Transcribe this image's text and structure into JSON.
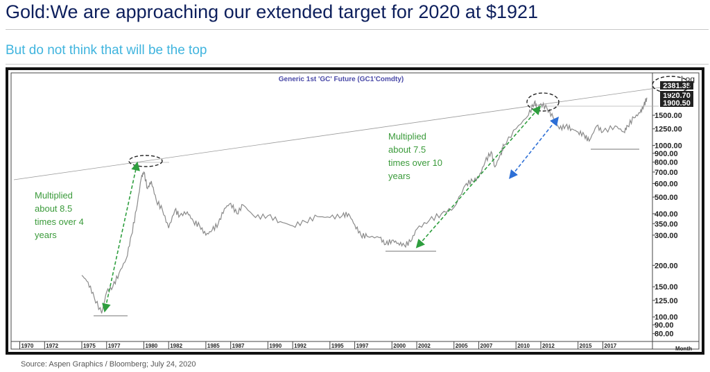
{
  "header": {
    "title": "Gold:We are approaching our extended target for 2020 at $1921",
    "subtitle": "But do not think that will be the top"
  },
  "footer": {
    "source": "Source: Aspen Graphics / Bloomberg; July 24, 2020"
  },
  "colors": {
    "title": "#0d1f5c",
    "subtitle": "#3fb4de",
    "series": "#8a8a8a",
    "green_arrow": "#2e9e3e",
    "blue_arrow": "#2d6fd6",
    "annotation_text": "#3a9a3a"
  },
  "chart_data": {
    "type": "line",
    "title": "Generic 1st 'GC' Future (GC1'Comdty)",
    "scale": "Log",
    "x_axis_label": "Month",
    "x_ticks": [
      "1970",
      "1972",
      "1975",
      "1977",
      "1980",
      "1982",
      "1985",
      "1987",
      "1990",
      "1992",
      "1995",
      "1997",
      "2000",
      "2002",
      "2005",
      "2007",
      "2010",
      "2012",
      "2015",
      "2017"
    ],
    "y_ticks": [
      "80.00",
      "90.00",
      "100.00",
      "125.00",
      "150.00",
      "200.00",
      "300.00",
      "350.00",
      "400.00",
      "500.00",
      "600.00",
      "700.00",
      "800.00",
      "900.00",
      "1000.00",
      "1250.00",
      "1500.00"
    ],
    "y_range": [
      72,
      2650
    ],
    "x_range": [
      1969.3,
      2021.0
    ],
    "price_labels": [
      "2381.35",
      "1920.70",
      "1900.50"
    ],
    "series": [
      {
        "x": [
          1975.0,
          1975.5,
          1976.0,
          1976.6,
          1977.0,
          1977.5,
          1978.0,
          1978.6,
          1979.0,
          1979.4,
          1979.8,
          1980.0,
          1980.3,
          1980.6,
          1981.0,
          1981.5,
          1982.0,
          1982.5,
          1982.9,
          1983.5,
          1984.0,
          1984.5,
          1985.0,
          1985.5,
          1986.0,
          1986.5,
          1987.0,
          1987.5,
          1988.0,
          1989.0,
          1990.0,
          1991.0,
          1992.0,
          1993.0,
          1994.0,
          1995.0,
          1996.0,
          1996.5,
          1997.0,
          1997.5,
          1998.0,
          1999.0,
          1999.5,
          2000.0,
          2000.5,
          2001.0,
          2001.5,
          2002.0,
          2003.0,
          2004.0,
          2005.0,
          2006.0,
          2006.5,
          2007.0,
          2007.5,
          2008.0,
          2008.3,
          2008.8,
          2009.0,
          2010.0,
          2011.0,
          2011.5,
          2011.7,
          2012.0,
          2012.5,
          2013.0,
          2013.5,
          2014.0,
          2014.5,
          2015.0,
          2015.5,
          2015.9,
          2016.5,
          2017.0,
          2018.0,
          2018.7,
          2019.0,
          2019.5,
          2020.0,
          2020.3,
          2020.55
        ],
        "y": [
          175,
          160,
          130,
          105,
          140,
          150,
          180,
          220,
          300,
          420,
          650,
          700,
          560,
          620,
          480,
          420,
          330,
          420,
          390,
          410,
          360,
          340,
          300,
          320,
          350,
          430,
          460,
          400,
          450,
          380,
          390,
          360,
          340,
          360,
          385,
          380,
          390,
          400,
          345,
          300,
          295,
          290,
          265,
          280,
          270,
          262,
          275,
          325,
          365,
          400,
          435,
          600,
          620,
          650,
          800,
          920,
          750,
          900,
          1000,
          1250,
          1500,
          1800,
          1650,
          1750,
          1650,
          1450,
          1250,
          1300,
          1250,
          1200,
          1150,
          1060,
          1300,
          1200,
          1300,
          1200,
          1300,
          1450,
          1550,
          1700,
          1900
        ]
      }
    ],
    "annotations": [
      {
        "text": "Multiplied about 8.5 times over 4 years"
      },
      {
        "text": "Multiplied about 7.5 times over 10 years"
      }
    ]
  }
}
